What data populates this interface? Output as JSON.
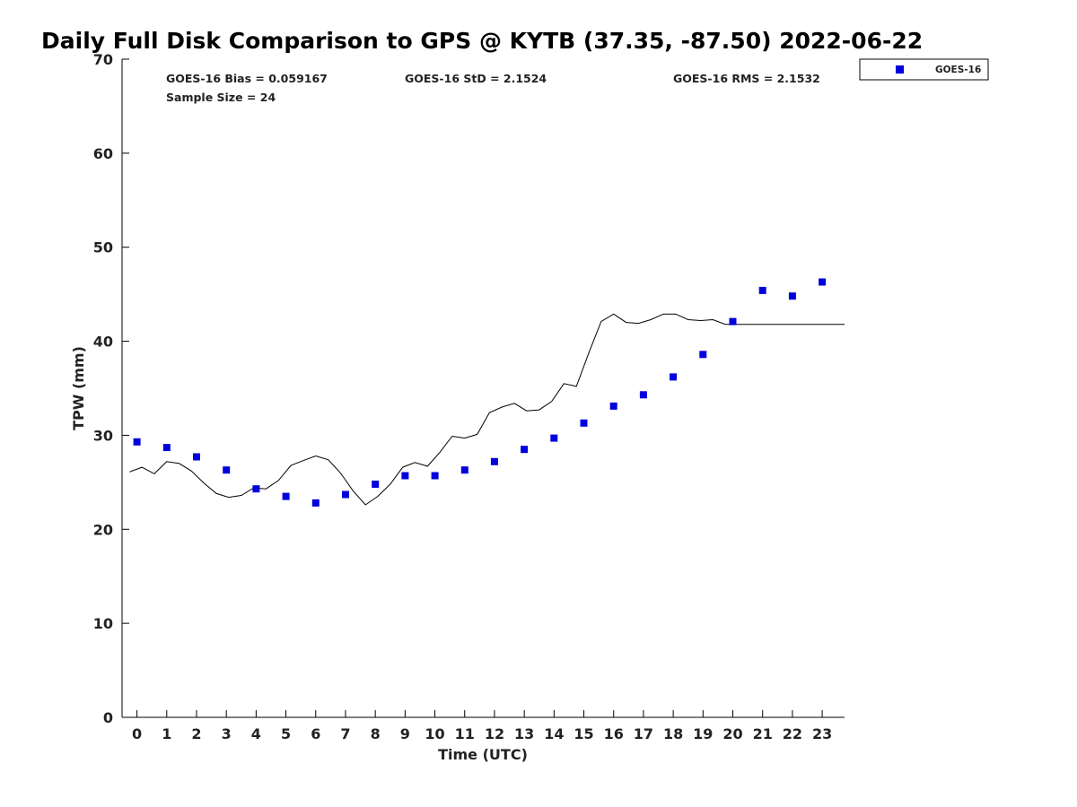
{
  "chart_data": {
    "type": "scatter",
    "title": "Daily Full Disk Comparison to GPS @ KYTB (37.35, -87.50) 2022-06-22",
    "xlabel": "Time (UTC)",
    "ylabel": "TPW (mm)",
    "xlim": [
      -0.5,
      23.75
    ],
    "ylim": [
      0,
      70
    ],
    "xticks": [
      0,
      1,
      2,
      3,
      4,
      5,
      6,
      7,
      8,
      9,
      10,
      11,
      12,
      13,
      14,
      15,
      16,
      17,
      18,
      19,
      20,
      21,
      22,
      23
    ],
    "yticks": [
      0,
      10,
      20,
      30,
      40,
      50,
      60,
      70
    ],
    "grid": false,
    "legend_position": "top-right outside",
    "annotations": {
      "bias": "GOES-16 Bias = 0.059167",
      "std": "GOES-16 StD = 2.1524",
      "rms": "GOES-16 RMS = 2.1532",
      "sample_size": "Sample Size = 24"
    },
    "series": [
      {
        "name": "GOES-16",
        "kind": "scatter",
        "marker": "square",
        "color": "#0000dd",
        "x": [
          0,
          1,
          2,
          3,
          4,
          5,
          6,
          7,
          8,
          9,
          10,
          11,
          12,
          13,
          14,
          15,
          16,
          17,
          18,
          19,
          20,
          21,
          22,
          23
        ],
        "y": [
          29.3,
          28.7,
          27.7,
          26.3,
          24.3,
          23.5,
          22.8,
          23.7,
          24.8,
          25.7,
          25.7,
          26.3,
          27.2,
          28.5,
          29.7,
          31.3,
          33.1,
          34.3,
          36.2,
          38.6,
          42.1,
          45.4,
          44.8,
          46.3
        ]
      },
      {
        "kind": "line",
        "color": "#000000",
        "x": [
          -0.25,
          0.17,
          0.58,
          1.0,
          1.42,
          1.83,
          2.25,
          2.67,
          3.08,
          3.5,
          3.92,
          4.33,
          4.75,
          5.17,
          5.58,
          6.0,
          6.42,
          6.83,
          7.25,
          7.67,
          8.08,
          8.5,
          8.92,
          9.33,
          9.75,
          10.17,
          10.58,
          11.0,
          11.42,
          11.83,
          12.25,
          12.67,
          13.08,
          13.5,
          13.92,
          14.33,
          14.75,
          15.17,
          15.58,
          16.0,
          16.42,
          16.83,
          17.25,
          17.67,
          18.08,
          18.5,
          18.92,
          19.33,
          19.75,
          20.17,
          20.58,
          21.0,
          21.42,
          21.83,
          22.25,
          22.67,
          23.08,
          23.5,
          23.75
        ],
        "y": [
          26.1,
          26.6,
          25.9,
          27.2,
          27.0,
          26.2,
          24.9,
          23.8,
          23.4,
          23.6,
          24.4,
          24.3,
          25.2,
          26.8,
          27.3,
          27.8,
          27.4,
          26.0,
          24.1,
          22.6,
          23.5,
          24.8,
          26.6,
          27.1,
          26.7,
          28.2,
          29.9,
          29.7,
          30.1,
          32.4,
          33.0,
          33.4,
          32.6,
          32.7,
          33.6,
          35.5,
          35.2,
          38.8,
          42.1,
          42.9,
          42.0,
          41.9,
          42.3,
          42.9,
          42.9,
          42.3,
          42.2,
          42.3,
          41.8,
          41.8,
          41.8,
          41.8,
          41.8,
          41.8,
          41.8,
          41.8,
          41.8,
          41.8,
          41.8
        ]
      }
    ]
  }
}
